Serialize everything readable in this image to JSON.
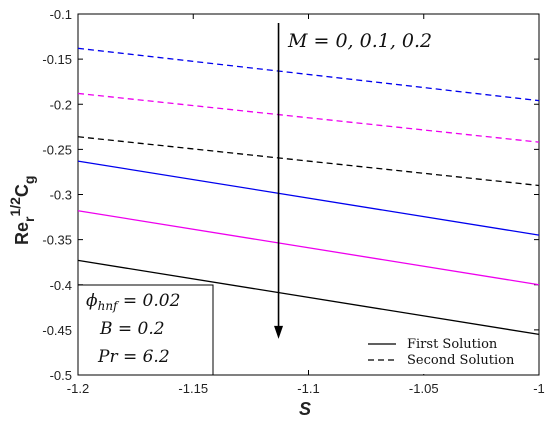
{
  "chart_data": {
    "type": "line",
    "xlabel": "S",
    "ylabel": {
      "main": "Re",
      "sub_r": "r",
      "sup": "1/2",
      "c": "C",
      "sub_g": "g"
    },
    "xlim": [
      -1.2,
      -1.0
    ],
    "ylim": [
      -0.5,
      -0.1
    ],
    "x_ticks": [
      "-1.2",
      "-1.15",
      "-1.1",
      "-1.05",
      "-1"
    ],
    "y_ticks": [
      "-0.1",
      "-0.15",
      "-0.2",
      "-0.25",
      "-0.3",
      "-0.35",
      "-0.4",
      "-0.45",
      "-0.5"
    ],
    "x": [
      -1.2,
      -1.0
    ],
    "series": [
      {
        "solution": "first",
        "M": "0",
        "color": "#0000ee",
        "dash": false,
        "values": [
          -0.263,
          -0.345
        ]
      },
      {
        "solution": "first",
        "M": "0.1",
        "color": "#ee00ee",
        "dash": false,
        "values": [
          -0.318,
          -0.4
        ]
      },
      {
        "solution": "first",
        "M": "0.2",
        "color": "#000000",
        "dash": false,
        "values": [
          -0.373,
          -0.455
        ]
      },
      {
        "solution": "second",
        "M": "0",
        "color": "#0000ee",
        "dash": true,
        "values": [
          -0.138,
          -0.196
        ]
      },
      {
        "solution": "second",
        "M": "0.1",
        "color": "#ee00ee",
        "dash": true,
        "values": [
          -0.188,
          -0.242
        ]
      },
      {
        "solution": "second",
        "M": "0.2",
        "color": "#000000",
        "dash": true,
        "values": [
          -0.236,
          -0.29
        ]
      }
    ],
    "annotation": {
      "text": "M = 0, 0.1, 0.2",
      "arrow_x": -1.113,
      "arrow_y_start": -0.11,
      "arrow_y_end": -0.46
    },
    "params": {
      "phi": "ϕ",
      "phi_sub": "hnf",
      "phi_val": " = 0.02",
      "b": "B = 0.2",
      "pr": "Pr = 6.2"
    },
    "legend": {
      "position": "bottom-right",
      "entries": [
        {
          "label": "First Solution",
          "dash": false
        },
        {
          "label": "Second Solution",
          "dash": true
        }
      ]
    },
    "grid": false
  }
}
